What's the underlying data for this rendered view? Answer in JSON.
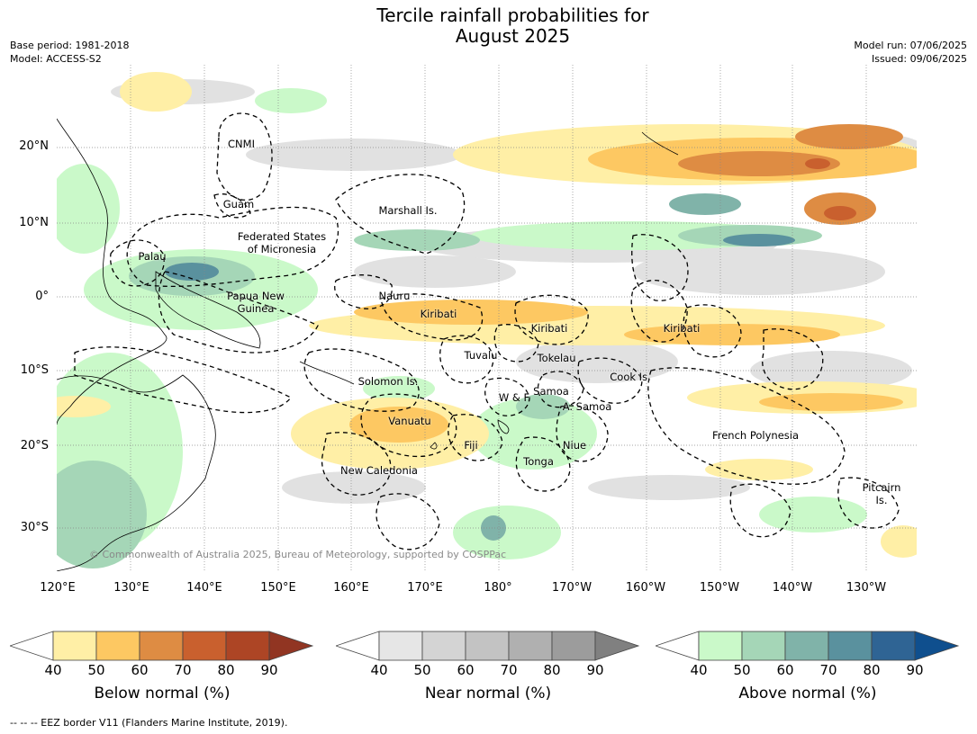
{
  "title": {
    "line1": "Tercile rainfall probabilities for",
    "line2": "August 2025"
  },
  "meta_left": {
    "base_period": "Base period: 1981-2018",
    "model": "Model: ACCESS-S2"
  },
  "meta_right": {
    "model_run": "Model run: 07/06/2025",
    "issued": "Issued: 09/06/2025"
  },
  "lat_labels": [
    "20°N",
    "10°N",
    "0°",
    "10°S",
    "20°S",
    "30°S"
  ],
  "lon_labels": [
    "120°E",
    "130°E",
    "140°E",
    "150°E",
    "160°E",
    "170°E",
    "180°",
    "170°W",
    "160°W",
    "150°W",
    "140°W",
    "130°W"
  ],
  "regions": [
    "CNMI",
    "Guam",
    "Marshall Is.",
    "Federated States",
    "of Micronesia",
    "Palau",
    "Papua New",
    "Guinea",
    "Nauru",
    "Kiribati",
    "Kiribati",
    "Kiribati",
    "Tuvalu",
    "Tokelau",
    "Cook Is.",
    "Solomon Is.",
    "W & F",
    "Samoa",
    "A. Samoa",
    "Vanuatu",
    "Fiji",
    "Niue",
    "Tonga",
    "French Polynesia",
    "New Caledonia",
    "Pitcairn",
    "Is."
  ],
  "copyright": "© Commonwealth of Australia 2025, Bureau of Meteorology, supported by COSPPac",
  "legends": [
    {
      "label": "Below normal (%)",
      "ticks": [
        "40",
        "50",
        "60",
        "70",
        "80",
        "90"
      ],
      "colors": [
        "#ffffff",
        "#ffefa6",
        "#fdc862",
        "#de8c43",
        "#c9602e",
        "#ad4525",
        "#913522"
      ]
    },
    {
      "label": "Near normal (%)",
      "ticks": [
        "40",
        "50",
        "60",
        "70",
        "80",
        "90"
      ],
      "colors": [
        "#ffffff",
        "#e6e6e6",
        "#d4d4d4",
        "#c3c3c3",
        "#b0b0b0",
        "#9c9c9c",
        "#808080"
      ]
    },
    {
      "label": "Above normal (%)",
      "ticks": [
        "40",
        "50",
        "60",
        "70",
        "80",
        "90"
      ],
      "colors": [
        "#ffffff",
        "#caf9c9",
        "#a5d6b7",
        "#80b3a9",
        "#5a919e",
        "#2f6494",
        "#0f4f8e"
      ]
    }
  ],
  "footer": "--  --  -- EEZ border V11 (Flanders Marine Institute, 2019)."
}
